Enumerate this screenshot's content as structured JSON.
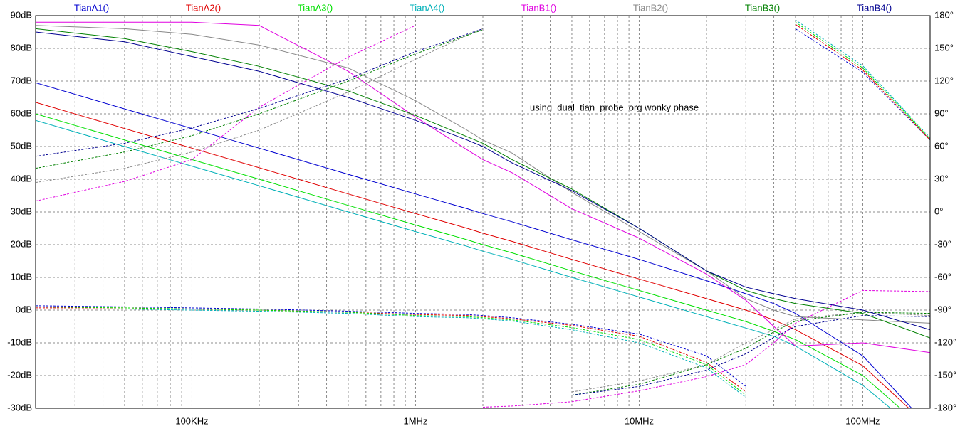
{
  "chart_data": {
    "type": "line",
    "xscale": "log",
    "grid": true,
    "annotation": "using_dual_tian_probe_org wonky phase",
    "x": [
      20000,
      50000,
      100000,
      200000,
      500000,
      1000000,
      1700000,
      2000000,
      2700000,
      5000000,
      10000000,
      20000000,
      30000000,
      40000000,
      50000000,
      100000000,
      200000000
    ],
    "xlim": [
      20000,
      200000000
    ],
    "xticks": [
      {
        "value": 100000,
        "label": "100KHz"
      },
      {
        "value": 1000000,
        "label": "1MHz"
      },
      {
        "value": 10000000,
        "label": "10MHz"
      },
      {
        "value": 100000000,
        "label": "100MHz"
      }
    ],
    "xminor_ticks": [
      20000,
      30000,
      40000,
      50000,
      60000,
      70000,
      80000,
      90000,
      200000,
      300000,
      400000,
      500000,
      600000,
      700000,
      800000,
      900000,
      2000000,
      3000000,
      4000000,
      5000000,
      6000000,
      7000000,
      8000000,
      9000000,
      20000000,
      30000000,
      40000000,
      50000000,
      60000000,
      70000000,
      80000000,
      90000000,
      200000000
    ],
    "ylim": [
      -30,
      90
    ],
    "yticks": [
      {
        "value": 90,
        "label": "90dB"
      },
      {
        "value": 80,
        "label": "80dB"
      },
      {
        "value": 70,
        "label": "70dB"
      },
      {
        "value": 60,
        "label": "60dB"
      },
      {
        "value": 50,
        "label": "50dB"
      },
      {
        "value": 40,
        "label": "40dB"
      },
      {
        "value": 30,
        "label": "30dB"
      },
      {
        "value": 20,
        "label": "20dB"
      },
      {
        "value": 10,
        "label": "10dB"
      },
      {
        "value": 0,
        "label": "0dB"
      },
      {
        "value": -10,
        "label": "-10dB"
      },
      {
        "value": -20,
        "label": "-20dB"
      },
      {
        "value": -30,
        "label": "-30dB"
      }
    ],
    "y2lim": [
      -180,
      180
    ],
    "y2ticks": [
      {
        "value": 180,
        "label": "180°"
      },
      {
        "value": 150,
        "label": "150°"
      },
      {
        "value": 120,
        "label": "120°"
      },
      {
        "value": 90,
        "label": "90°"
      },
      {
        "value": 60,
        "label": "60°"
      },
      {
        "value": 30,
        "label": "30°"
      },
      {
        "value": 0,
        "label": "0°"
      },
      {
        "value": -30,
        "label": "-30°"
      },
      {
        "value": -60,
        "label": "-60°"
      },
      {
        "value": -90,
        "label": "-90°"
      },
      {
        "value": -120,
        "label": "-120°"
      },
      {
        "value": -150,
        "label": "-150°"
      },
      {
        "value": -180,
        "label": "-180°"
      }
    ],
    "series": [
      {
        "name": "TianA1()",
        "color": "#0000d0",
        "values": [
          69.5,
          61.5,
          55.5,
          49.5,
          41.5,
          35.5,
          31,
          29.5,
          27,
          21.5,
          15.5,
          9,
          5,
          2,
          -1,
          -14,
          -36
        ],
        "phase_values": [
          -86,
          -87,
          -88,
          -89,
          -91,
          -93,
          -94,
          -95,
          -97,
          -103,
          -112,
          -132,
          -160,
          null,
          168,
          128,
          66
        ]
      },
      {
        "name": "TianA2()",
        "color": "#e00000",
        "values": [
          63.5,
          55.5,
          49.5,
          43.5,
          35.5,
          29.5,
          25,
          23.5,
          21,
          15.5,
          9.5,
          3.5,
          0,
          -3,
          -6,
          -17,
          -36
        ],
        "phase_values": [
          -88,
          -88,
          -89,
          -90,
          -92,
          -94,
          -95,
          -96,
          -98,
          -104,
          -114,
          -138,
          -165,
          null,
          172,
          130,
          66
        ]
      },
      {
        "name": "TianA3()",
        "color": "#00e000",
        "values": [
          60,
          52,
          46,
          40,
          32,
          26,
          21.5,
          20,
          17.5,
          12,
          6,
          0,
          -3.5,
          -6.5,
          -9,
          -20,
          -38
        ],
        "phase_values": [
          -87,
          -88,
          -89,
          -90,
          -92,
          -95,
          -96,
          -97,
          -99,
          -106,
          -117,
          -140,
          -168,
          null,
          174,
          132,
          67
        ]
      },
      {
        "name": "TianA4()",
        "color": "#00b0b8",
        "values": [
          58,
          50,
          44,
          38,
          30,
          24,
          19.5,
          18,
          15.5,
          10,
          4,
          -2,
          -5.5,
          -8,
          -11,
          -23,
          -40
        ],
        "phase_values": [
          -89,
          -89,
          -90,
          -91,
          -93,
          -96,
          -97,
          -98,
          -100,
          -108,
          -120,
          -143,
          -170,
          null,
          176,
          134,
          68
        ]
      },
      {
        "name": "TianB1()",
        "color": "#e000e0",
        "values": [
          88,
          88,
          88,
          87,
          73,
          59,
          49,
          46,
          42,
          31,
          22,
          11,
          3,
          -5,
          -11,
          -10,
          -13
        ],
        "phase_values": [
          10,
          28,
          48,
          96,
          142,
          171,
          null,
          -179,
          -178,
          -174,
          -164,
          -151,
          -140,
          -120,
          -102,
          -72,
          -73
        ]
      },
      {
        "name": "TianB2()",
        "color": "#888888",
        "values": [
          87,
          86,
          84.3,
          81,
          74,
          64,
          55,
          52,
          48,
          36,
          24,
          12,
          3.5,
          0,
          -2,
          -3,
          -4
        ],
        "phase_values": [
          27,
          40,
          55,
          75,
          110,
          140,
          162,
          168,
          null,
          -165,
          -155,
          -140,
          -120,
          -108,
          -98,
          -92,
          -95
        ]
      },
      {
        "name": "TianB3()",
        "color": "#008000",
        "values": [
          86,
          83,
          79,
          74.5,
          67,
          59.5,
          53,
          51,
          46,
          37,
          25,
          12,
          6,
          3.5,
          2,
          -1,
          -8.5
        ],
        "phase_values": [
          40,
          55,
          70,
          90,
          120,
          145,
          162,
          167,
          null,
          -168,
          -158,
          -140,
          -125,
          -110,
          -100,
          -92,
          -93
        ]
      },
      {
        "name": "TianB4()",
        "color": "#000090",
        "values": [
          85,
          82,
          77.5,
          73,
          65,
          58,
          52,
          50,
          45,
          36.5,
          25,
          12,
          7,
          5,
          3.5,
          0,
          -6
        ],
        "phase_values": [
          51,
          63,
          77,
          95,
          122,
          147,
          163,
          168,
          null,
          -168,
          -160,
          -145,
          -130,
          -115,
          -105,
          -95,
          -96
        ]
      }
    ]
  }
}
